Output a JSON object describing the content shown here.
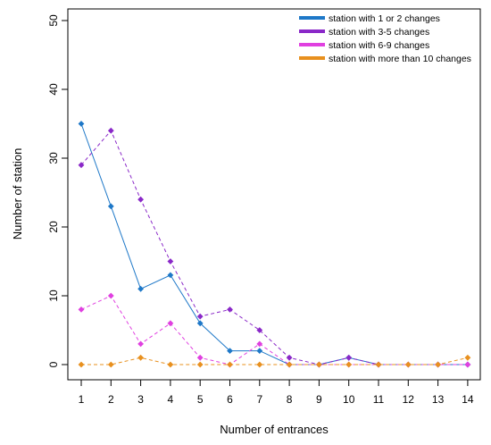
{
  "chart_data": {
    "type": "line",
    "title": "",
    "xlabel": "Number of entrances",
    "ylabel": "Number of station",
    "x": [
      1,
      2,
      3,
      4,
      5,
      6,
      7,
      8,
      9,
      10,
      11,
      12,
      13,
      14
    ],
    "xlim": [
      1,
      14
    ],
    "ylim": [
      0,
      50
    ],
    "yticks": [
      0,
      10,
      20,
      30,
      40,
      50
    ],
    "grid": false,
    "legend_position": "top-right",
    "series": [
      {
        "name": "station with 1 or 2 changes",
        "color": "#1e78c8",
        "line": "solid",
        "values": [
          35,
          23,
          11,
          13,
          6,
          2,
          2,
          0,
          0,
          1,
          0,
          0,
          0,
          0
        ]
      },
      {
        "name": "station with 3-5 changes",
        "color": "#8a28c8",
        "line": "dashed",
        "values": [
          29,
          34,
          24,
          15,
          7,
          8,
          5,
          1,
          0,
          1,
          0,
          0,
          0,
          0
        ]
      },
      {
        "name": "station with 6-9 changes",
        "color": "#e040e0",
        "line": "dashed",
        "values": [
          8,
          10,
          3,
          6,
          1,
          0,
          3,
          0,
          0,
          0,
          0,
          0,
          0,
          0
        ]
      },
      {
        "name": "station with more than 10 changes",
        "color": "#e8901e",
        "line": "dashed",
        "values": [
          0,
          0,
          1,
          0,
          0,
          0,
          0,
          0,
          0,
          0,
          0,
          0,
          0,
          1
        ]
      }
    ]
  }
}
